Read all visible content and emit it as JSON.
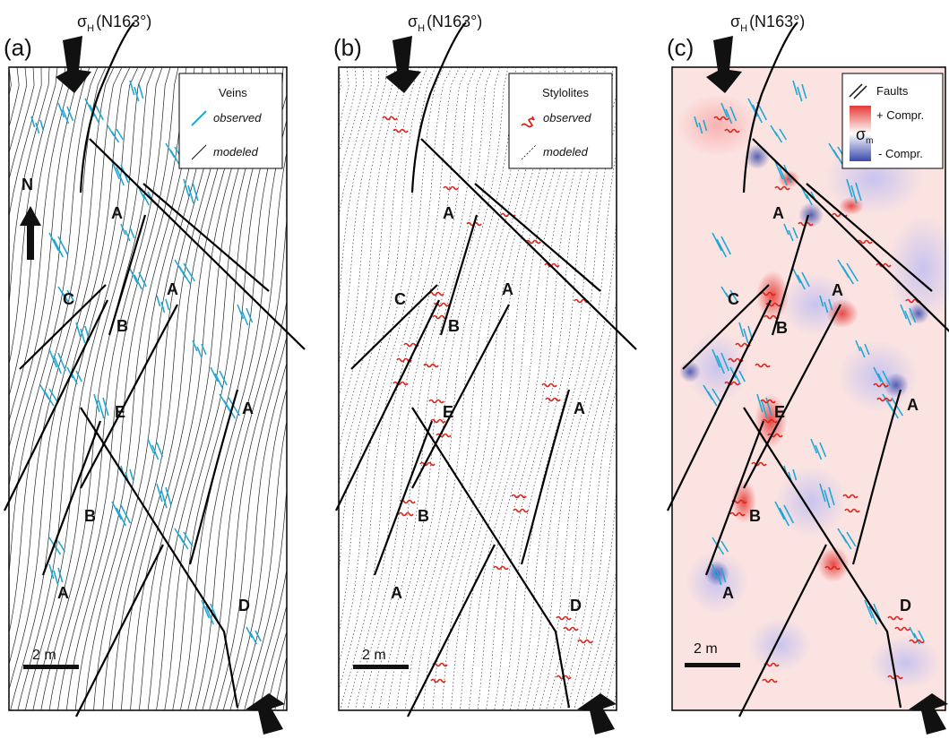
{
  "stress_label": "σ",
  "stress_sub": "H",
  "stress_azimuth": "(N163°)",
  "panels": [
    {
      "id": "a",
      "label": "(a)",
      "legend_title": "Veins",
      "legend_observed": "observed",
      "legend_modeled": "modeled",
      "scale": "2 m"
    },
    {
      "id": "b",
      "label": "(b)",
      "legend_title": "Stylolites",
      "legend_observed": "observed",
      "legend_modeled": "modeled",
      "scale": "2 m"
    },
    {
      "id": "c",
      "label": "(c)",
      "legend_title": "Faults",
      "legend_plus": "+ Compr.",
      "legend_sigma": "σ",
      "legend_sigma_sub": "m",
      "legend_minus": "- Compr.",
      "scale": "2 m"
    }
  ],
  "north_label": "N",
  "block_labels": {
    "A": "A",
    "B": "B",
    "C": "C",
    "D": "D",
    "E": "E"
  },
  "colors": {
    "vein": "#1fa8d6",
    "stylolite": "#d8261e",
    "fault": "#000000",
    "compression": "#e53935",
    "extension": "#3949ab"
  }
}
